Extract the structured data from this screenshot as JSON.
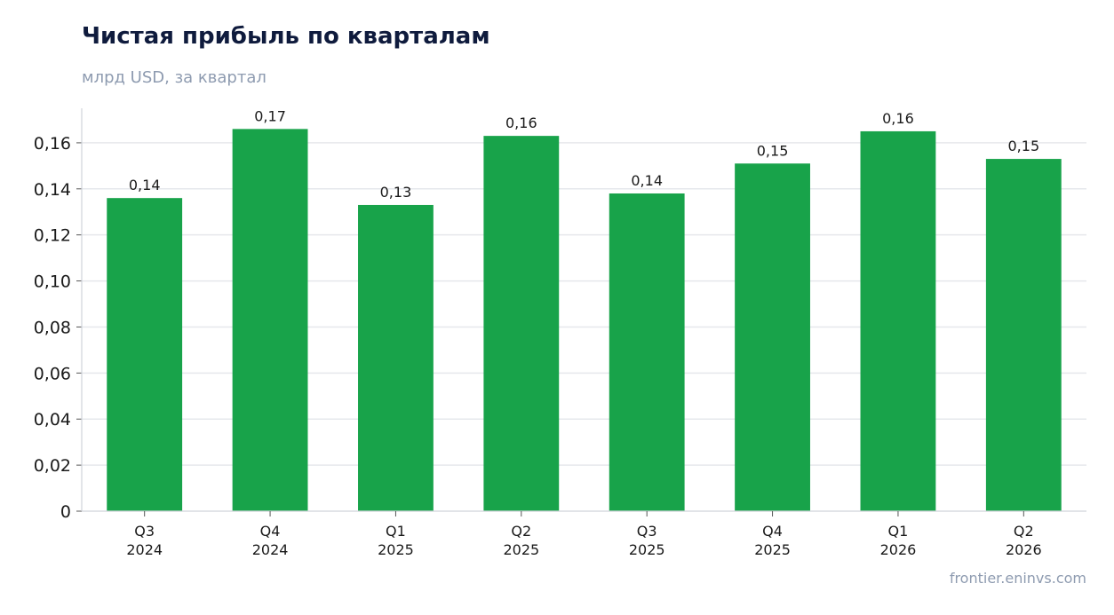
{
  "header": {
    "title": "Чистая прибыль по кварталам",
    "subtitle": "млрд USD, за квартал"
  },
  "footer": {
    "source": "frontier.eninvs.com"
  },
  "colors": {
    "bar": "#18a34a",
    "grid": "#e6e8ec",
    "axis": "#d0d4da"
  },
  "chart_data": {
    "type": "bar",
    "title": "Чистая прибыль по кварталам",
    "subtitle": "млрд USD, за квартал",
    "categories": [
      [
        "Q3",
        "2024"
      ],
      [
        "Q4",
        "2024"
      ],
      [
        "Q1",
        "2025"
      ],
      [
        "Q2",
        "2025"
      ],
      [
        "Q3",
        "2025"
      ],
      [
        "Q4",
        "2025"
      ],
      [
        "Q1",
        "2026"
      ],
      [
        "Q2",
        "2026"
      ]
    ],
    "values": [
      0.136,
      0.166,
      0.133,
      0.163,
      0.138,
      0.151,
      0.165,
      0.153
    ],
    "data_labels": [
      "0,14",
      "0,17",
      "0,13",
      "0,16",
      "0,14",
      "0,15",
      "0,16",
      "0,15"
    ],
    "ylim": [
      0,
      0.175
    ],
    "yticks": [
      0,
      0.02,
      0.04,
      0.06,
      0.08,
      0.1,
      0.12,
      0.14,
      0.16
    ],
    "ytick_labels": [
      "0",
      "0,02",
      "0,04",
      "0,06",
      "0,08",
      "0,10",
      "0,12",
      "0,14",
      "0,16"
    ],
    "grid": true,
    "legend": "none"
  }
}
